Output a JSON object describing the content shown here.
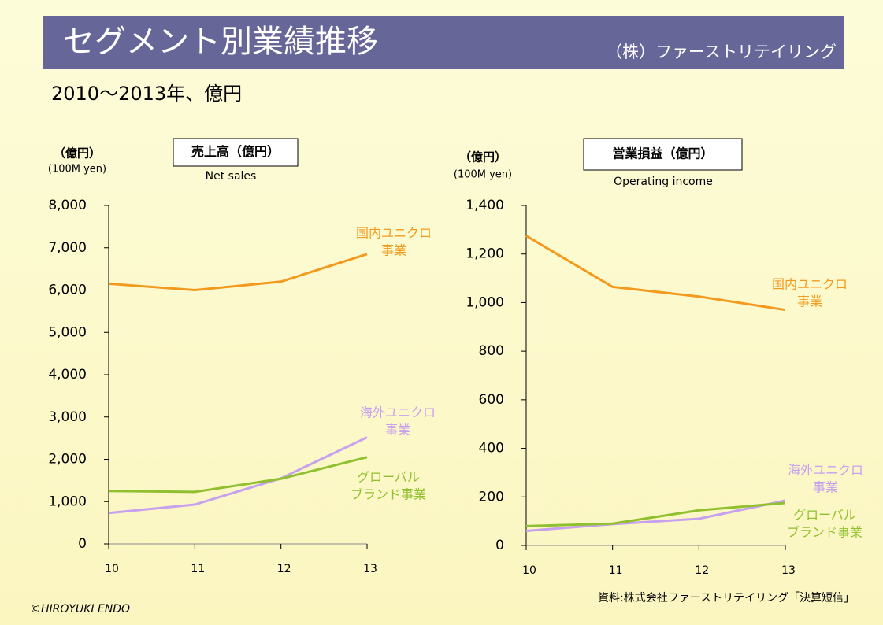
{
  "header": {
    "title": "セグメント別業績推移",
    "company": "（株）ファーストリテイリング",
    "subtitle": "2010～2013年、億円"
  },
  "chart_data": [
    {
      "type": "line",
      "title": "売上高（億円）",
      "subtitle": "Net sales",
      "y_unit": "（億円）",
      "y_unit_en": "(100M yen)",
      "categories": [
        "10",
        "11",
        "12",
        "13"
      ],
      "ylim": [
        0,
        8000
      ],
      "yticks": [
        0,
        {
          "value": 1000,
          "label": "1,000"
        },
        {
          "value": 2000,
          "label": "2,000"
        },
        {
          "value": 3000,
          "label": "3,000"
        },
        {
          "value": 4000,
          "label": "4,000"
        },
        {
          "value": 5000,
          "label": "5,000"
        },
        {
          "value": 6000,
          "label": "6,000"
        },
        {
          "value": 7000,
          "label": "7,000"
        },
        {
          "value": 8000,
          "label": "8,000"
        }
      ],
      "series": [
        {
          "name": [
            "国内ユニクロ",
            "事業"
          ],
          "color": "#f39a1e",
          "values": [
            6150,
            6000,
            6200,
            6850
          ]
        },
        {
          "name": [
            "海外ユニクロ",
            "事業"
          ],
          "color": "#c8a0f0",
          "values": [
            730,
            930,
            1550,
            2520
          ]
        },
        {
          "name": [
            "グローバル",
            "ブランド事業"
          ],
          "color": "#90c030",
          "values": [
            1250,
            1230,
            1540,
            2050
          ]
        }
      ]
    },
    {
      "type": "line",
      "title": "営業損益（億円）",
      "subtitle": "Operating income",
      "y_unit": "（億円）",
      "y_unit_en": "(100M yen)",
      "categories": [
        "10",
        "11",
        "12",
        "13"
      ],
      "ylim": [
        0,
        1400
      ],
      "yticks": [
        0,
        200,
        400,
        600,
        800,
        {
          "value": 1000,
          "label": "1,000"
        },
        {
          "value": 1200,
          "label": "1,200"
        },
        {
          "value": 1400,
          "label": "1,400"
        }
      ],
      "series": [
        {
          "name": [
            "国内ユニクロ",
            "事業"
          ],
          "color": "#f39a1e",
          "values": [
            1275,
            1065,
            1025,
            970
          ]
        },
        {
          "name": [
            "海外ユニクロ",
            "事業"
          ],
          "color": "#c8a0f0",
          "values": [
            60,
            88,
            110,
            185
          ]
        },
        {
          "name": [
            "グローバル",
            "ブランド事業"
          ],
          "color": "#90c030",
          "values": [
            80,
            90,
            145,
            175
          ]
        }
      ]
    }
  ],
  "footer": {
    "copyright": "©HIROYUKI ENDO",
    "source": "資料:株式会社ファーストリテイリング「決算短信」"
  }
}
